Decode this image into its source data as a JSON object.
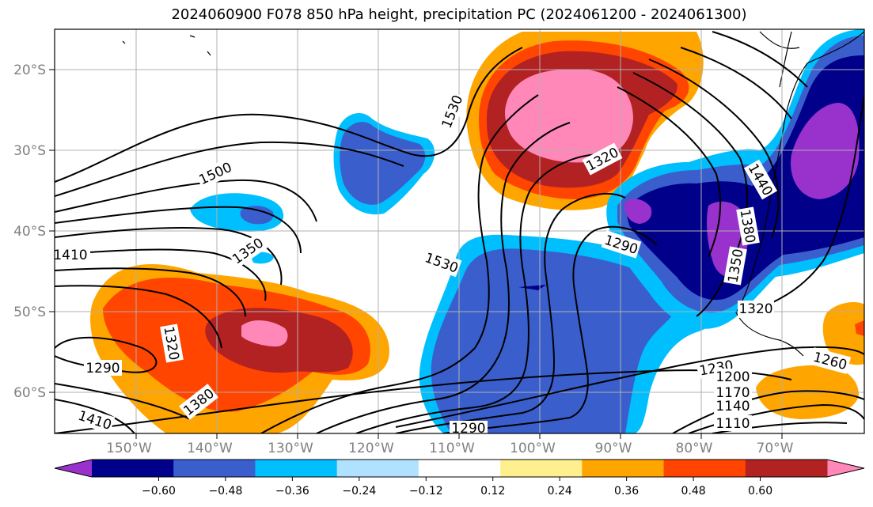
{
  "title": "2024060900 F078 850 hPa height, precipitation PC (2024061200 - 2024061300)",
  "lat_labels": [
    "20°S",
    "30°S",
    "40°S",
    "50°S",
    "60°S"
  ],
  "lon_labels": [
    "150°W",
    "140°W",
    "130°W",
    "120°W",
    "110°W",
    "100°W",
    "90°W",
    "80°W",
    "70°W"
  ],
  "colorbar": {
    "ticks": [
      "−0.60",
      "−0.48",
      "−0.36",
      "−0.24",
      "−0.12",
      "0.12",
      "0.24",
      "0.36",
      "0.48",
      "0.60"
    ],
    "colors": [
      "#9932cc",
      "#00008b",
      "#3a5fcd",
      "#00bfff",
      "#b0e2ff",
      "#ffffff",
      "#fff08f",
      "#ffa500",
      "#ff4500",
      "#b22222",
      "#ff88b8"
    ]
  },
  "contour_labels": {
    "c1530a": "1530",
    "c1500": "1500",
    "c1410a": "1410",
    "c1350a": "1350",
    "c1530b": "1530",
    "c1320a": "1320",
    "c1320b": "1320",
    "c1290a": "1290",
    "c1290b": "1290",
    "c1290c": "1290",
    "c1380a": "1380",
    "c1410b": "1410",
    "c1440": "1440",
    "c1380b": "1380",
    "c1350b": "1350",
    "c1230": "1230",
    "c1200": "1200",
    "c1170": "1170",
    "c1140": "1140",
    "c1110": "1110",
    "c1260": "1260",
    "c1320c": "1320"
  }
}
